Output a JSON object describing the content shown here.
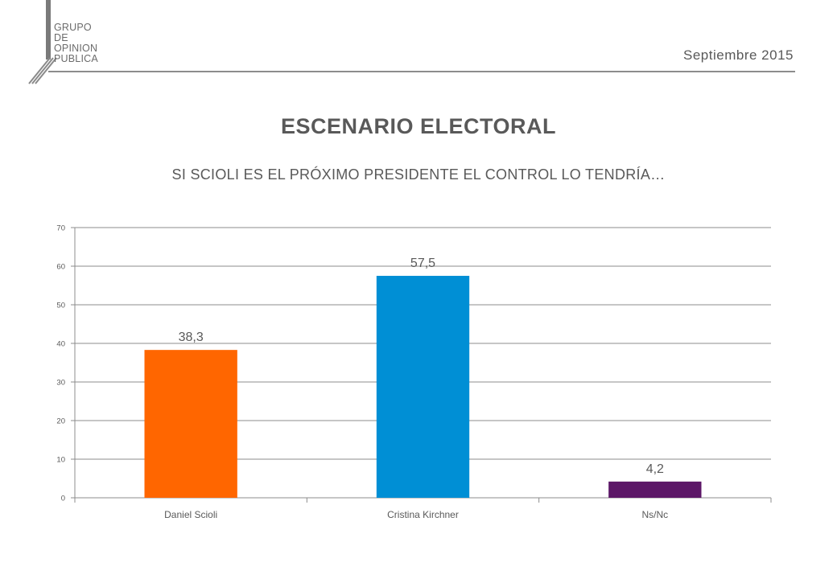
{
  "header": {
    "logo_lines": [
      "GRUPO",
      "DE",
      "OPINION",
      "PUBLICA"
    ],
    "date": "Septiembre 2015"
  },
  "title": "ESCENARIO ELECTORAL",
  "subtitle": "SI SCIOLI ES EL PRÓXIMO PRESIDENTE EL CONTROL LO TENDRÍA…",
  "chart_data": {
    "type": "bar",
    "title": "",
    "xlabel": "",
    "ylabel": "",
    "categories": [
      "Daniel Scioli",
      "Cristina Kirchner",
      "Ns/Nc"
    ],
    "values": [
      38.3,
      57.5,
      4.2
    ],
    "value_labels": [
      "38,3",
      "57,5",
      "4,2"
    ],
    "colors": [
      "#FF6600",
      "#008FD5",
      "#5C1767"
    ],
    "ylim": [
      0,
      70
    ],
    "yticks": [
      0,
      10,
      20,
      30,
      40,
      50,
      60,
      70
    ],
    "grid": true,
    "legend": "none"
  }
}
